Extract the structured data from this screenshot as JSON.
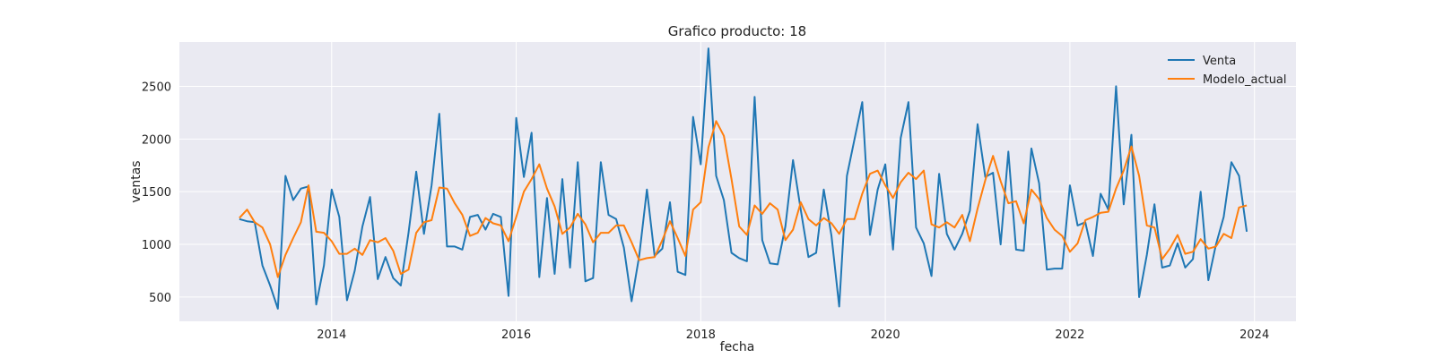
{
  "chart_data": {
    "type": "line",
    "title": "Grafico producto: 18",
    "xlabel": "fecha",
    "ylabel": "ventas",
    "xlim": [
      2012.35,
      2024.45
    ],
    "ylim": [
      270,
      2920
    ],
    "x_ticks": [
      2014,
      2016,
      2018,
      2020,
      2022,
      2024
    ],
    "y_ticks": [
      500,
      1000,
      1500,
      2000,
      2500
    ],
    "grid": true,
    "legend_position": "top-right",
    "x_start": "2013-01",
    "x_step": "1 month",
    "series": [
      {
        "name": "Venta",
        "color": "#1f77b4",
        "values": [
          1240,
          1220,
          1210,
          800,
          610,
          390,
          1650,
          1420,
          1530,
          1550,
          430,
          800,
          1520,
          1260,
          470,
          750,
          1170,
          1450,
          670,
          880,
          680,
          610,
          1110,
          1690,
          1100,
          1560,
          2240,
          980,
          980,
          950,
          1260,
          1280,
          1140,
          1290,
          1260,
          510,
          2200,
          1640,
          2060,
          690,
          1440,
          720,
          1620,
          780,
          1780,
          650,
          680,
          1780,
          1280,
          1240,
          970,
          460,
          890,
          1520,
          890,
          960,
          1400,
          740,
          710,
          2210,
          1760,
          2860,
          1650,
          1420,
          920,
          870,
          840,
          2400,
          1040,
          820,
          810,
          1170,
          1800,
          1330,
          880,
          920,
          1520,
          1080,
          410,
          1650,
          2000,
          2350,
          1090,
          1520,
          1760,
          950,
          2010,
          2350,
          1160,
          1010,
          700,
          1670,
          1100,
          950,
          1100,
          1320,
          2140,
          1640,
          1680,
          1000,
          1880,
          950,
          940,
          1910,
          1580,
          760,
          770,
          770,
          1560,
          1180,
          1210,
          890,
          1480,
          1330,
          2500,
          1380,
          2040,
          500,
          900,
          1380,
          780,
          800,
          1010,
          780,
          860,
          1500,
          660,
          1000,
          1260,
          1780,
          1650,
          1120
        ]
      },
      {
        "name": "Modelo_actual",
        "color": "#ff7f0e",
        "values": [
          1250,
          1330,
          1210,
          1160,
          1000,
          690,
          900,
          1060,
          1210,
          1560,
          1120,
          1110,
          1030,
          910,
          910,
          960,
          900,
          1040,
          1020,
          1060,
          940,
          720,
          760,
          1110,
          1210,
          1230,
          1540,
          1530,
          1390,
          1280,
          1080,
          1110,
          1250,
          1200,
          1180,
          1030,
          1260,
          1500,
          1620,
          1760,
          1530,
          1360,
          1100,
          1160,
          1290,
          1190,
          1020,
          1110,
          1110,
          1180,
          1180,
          1020,
          850,
          870,
          880,
          1040,
          1220,
          1060,
          890,
          1330,
          1400,
          1920,
          2170,
          2030,
          1620,
          1170,
          1090,
          1370,
          1290,
          1390,
          1330,
          1040,
          1140,
          1400,
          1240,
          1180,
          1250,
          1200,
          1100,
          1240,
          1240,
          1480,
          1670,
          1700,
          1560,
          1440,
          1590,
          1680,
          1620,
          1700,
          1190,
          1160,
          1210,
          1160,
          1280,
          1030,
          1340,
          1610,
          1840,
          1600,
          1390,
          1410,
          1200,
          1520,
          1430,
          1250,
          1140,
          1080,
          930,
          1010,
          1230,
          1260,
          1300,
          1310,
          1530,
          1700,
          1930,
          1650,
          1180,
          1160,
          860,
          960,
          1090,
          910,
          930,
          1050,
          960,
          980,
          1100,
          1060,
          1350,
          1370
        ]
      }
    ]
  }
}
